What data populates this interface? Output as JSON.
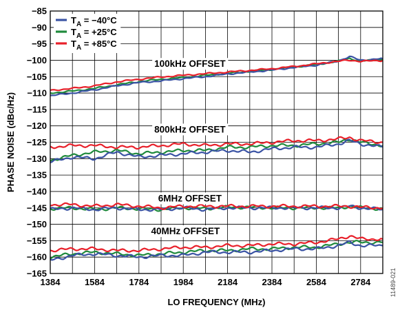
{
  "figure_id": "11489-021",
  "chart_data": {
    "type": "line",
    "xlabel": "LO FREQUENCY (MHz)",
    "ylabel": "PHASE NOISE (dBc/Hz)",
    "xlim": [
      1384,
      2884
    ],
    "ylim": [
      -165,
      -85
    ],
    "xticks": [
      1384,
      1584,
      1784,
      1984,
      2184,
      2384,
      2584,
      2784
    ],
    "yticks": [
      -165,
      -160,
      -155,
      -150,
      -145,
      -140,
      -135,
      -130,
      -125,
      -120,
      -115,
      -110,
      -105,
      -100,
      -95,
      -90,
      -85
    ],
    "grid": true,
    "legend": {
      "position": "top-left",
      "entries": [
        {
          "sub_label": "A",
          "label_value": " = −40°C",
          "color": "#3a53a4"
        },
        {
          "sub_label": "A",
          "label_value": " = +25°C",
          "color": "#1f8a3c"
        },
        {
          "sub_label": "A",
          "label_value": " = +85°C",
          "color": "#e8202a"
        }
      ]
    },
    "annotations": [
      {
        "text": "100kHz OFFSET",
        "x": 2014,
        "y": -101
      },
      {
        "text": "800kHz OFFSET",
        "x": 2014,
        "y": -121
      },
      {
        "text": "6MHz OFFSET",
        "x": 2014,
        "y": -142
      },
      {
        "text": "40MHz OFFSET",
        "x": 1994,
        "y": -152
      }
    ],
    "x": [
      1384,
      1484,
      1584,
      1684,
      1784,
      1884,
      1984,
      2084,
      2184,
      2284,
      2384,
      2484,
      2584,
      2684,
      2734,
      2784,
      2884
    ],
    "series": [
      {
        "group": "100kHz OFFSET",
        "temp": "−40°C",
        "color": "#3a53a4",
        "values": [
          -110.8,
          -110,
          -109,
          -107.8,
          -106.8,
          -106.3,
          -105.6,
          -105,
          -104.2,
          -103.6,
          -103,
          -102.2,
          -101.5,
          -100.2,
          -98.9,
          -100,
          -99.5
        ]
      },
      {
        "group": "100kHz OFFSET",
        "temp": "+25°C",
        "color": "#1f8a3c",
        "values": [
          -110,
          -109.4,
          -108.6,
          -107.5,
          -106.5,
          -105.8,
          -105.3,
          -104.6,
          -104,
          -103.4,
          -102.8,
          -102.1,
          -101.3,
          -100.3,
          -99.4,
          -100.3,
          -99.7
        ]
      },
      {
        "group": "100kHz OFFSET",
        "temp": "+85°C",
        "color": "#e8202a",
        "values": [
          -109.2,
          -108.6,
          -107.8,
          -106.6,
          -105.8,
          -105.1,
          -104.6,
          -104.1,
          -103.6,
          -103.1,
          -102.6,
          -101.9,
          -101.1,
          -100.3,
          -100,
          -100.3,
          -100.1
        ]
      },
      {
        "group": "800kHz OFFSET",
        "temp": "−40°C",
        "color": "#3a53a4",
        "values": [
          -131,
          -129.5,
          -130,
          -128,
          -129.5,
          -129,
          -128.5,
          -128,
          -127.5,
          -128,
          -127,
          -126.5,
          -126.5,
          -125.5,
          -124.5,
          -125.5,
          -126.5
        ]
      },
      {
        "group": "800kHz OFFSET",
        "temp": "+25°C",
        "color": "#1f8a3c",
        "values": [
          -130.5,
          -129,
          -128,
          -127.5,
          -128.5,
          -128,
          -127.5,
          -127.5,
          -126.5,
          -126.5,
          -126,
          -126,
          -125.5,
          -125,
          -124,
          -125,
          -126
        ]
      },
      {
        "group": "800kHz OFFSET",
        "temp": "+85°C",
        "color": "#e8202a",
        "values": [
          -126.5,
          -126,
          -126,
          -126.5,
          -126.5,
          -126,
          -125.5,
          -126,
          -125.5,
          -125.5,
          -125,
          -124.5,
          -124.5,
          -124,
          -123.5,
          -124.5,
          -125
        ]
      },
      {
        "group": "6MHz OFFSET",
        "temp": "−40°C",
        "color": "#3a53a4",
        "values": [
          -145.5,
          -145,
          -145.5,
          -145,
          -145.5,
          -145.5,
          -145,
          -145.5,
          -145,
          -145,
          -145,
          -145,
          -145,
          -145,
          -144.5,
          -145,
          -145.5
        ]
      },
      {
        "group": "6MHz OFFSET",
        "temp": "+25°C",
        "color": "#1f8a3c",
        "values": [
          -145.2,
          -145,
          -145.5,
          -145,
          -145.3,
          -145.5,
          -145,
          -145.2,
          -144.8,
          -144.8,
          -145,
          -145,
          -145,
          -145,
          -144.5,
          -145,
          -145.3
        ]
      },
      {
        "group": "6MHz OFFSET",
        "temp": "+85°C",
        "color": "#e8202a",
        "values": [
          -144,
          -144,
          -144.5,
          -144,
          -144.5,
          -145,
          -144.5,
          -144.5,
          -144.5,
          -144.5,
          -144.5,
          -144.5,
          -144.5,
          -144.5,
          -144.5,
          -144.8,
          -145
        ]
      },
      {
        "group": "40MHz OFFSET",
        "temp": "−40°C",
        "color": "#3a53a4",
        "values": [
          -161,
          -159.5,
          -159,
          -159.5,
          -160,
          -159.5,
          -159.5,
          -158.5,
          -158.5,
          -158.5,
          -158,
          -157.5,
          -157.5,
          -156.5,
          -155.5,
          -156.5,
          -156.5
        ]
      },
      {
        "group": "40MHz OFFSET",
        "temp": "+25°C",
        "color": "#1f8a3c",
        "values": [
          -160,
          -159,
          -158.5,
          -159,
          -159.5,
          -159,
          -158.5,
          -158,
          -158,
          -157.5,
          -157.5,
          -157,
          -157,
          -156,
          -155.5,
          -155.5,
          -155.5
        ]
      },
      {
        "group": "40MHz OFFSET",
        "temp": "+85°C",
        "color": "#e8202a",
        "values": [
          -158,
          -157.5,
          -157.5,
          -158,
          -158,
          -157.5,
          -157,
          -157,
          -156.5,
          -156.5,
          -156,
          -156,
          -155.5,
          -154.5,
          -153.5,
          -154.5,
          -154.5
        ]
      }
    ]
  }
}
